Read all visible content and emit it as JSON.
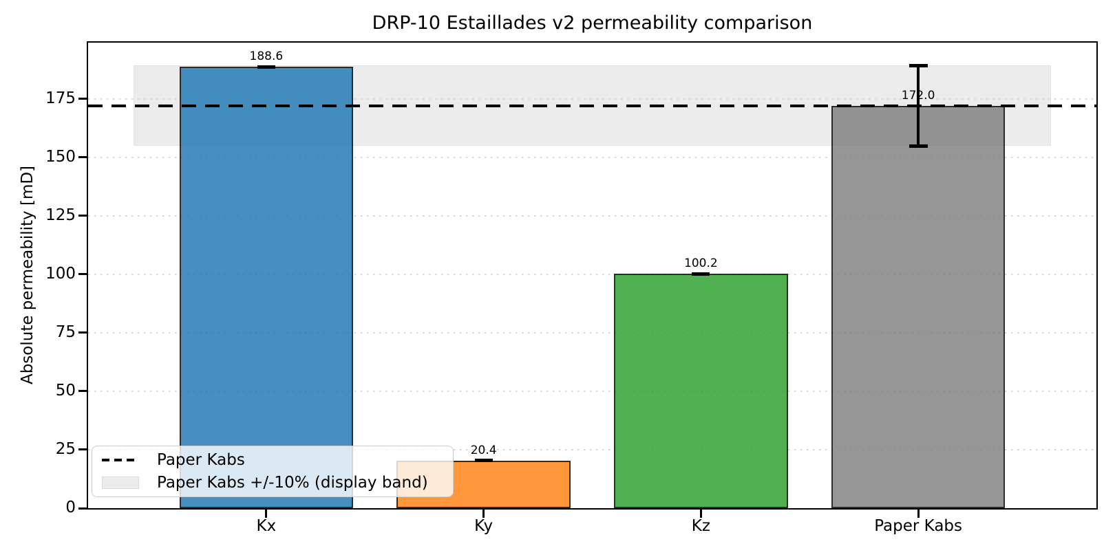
{
  "chart_data": {
    "type": "bar",
    "title": "DRP-10 Estaillades v2 permeability comparison",
    "xlabel": "",
    "ylabel": "Absolute permeability [mD]",
    "categories": [
      "Kx",
      "Ky",
      "Kz",
      "Paper Kabs"
    ],
    "values": [
      188.6,
      20.4,
      100.2,
      172.0
    ],
    "value_labels": [
      "188.6",
      "20.4",
      "100.2",
      "172.0"
    ],
    "bar_colors": [
      "#1f77b4",
      "#ff7f0e",
      "#2ca02c",
      "#7f7f7f"
    ],
    "bar_edge_color": "#000000",
    "yticks": [
      0,
      25,
      50,
      75,
      100,
      125,
      150,
      175
    ],
    "ylim": [
      0,
      199
    ],
    "grid": "horizontal-dotted",
    "reference_line": {
      "value": 172.0,
      "style": "dashed",
      "color": "#000000",
      "label": "Paper Kabs"
    },
    "band": {
      "y_low": 154.8,
      "y_high": 189.2,
      "x_start": -0.61,
      "x_end": 3.61,
      "color": "#ececec",
      "label": "Paper Kabs +/-10% (display band)"
    },
    "error_bar": {
      "category": "Paper Kabs",
      "index": 3,
      "center": 172.0,
      "plus_minus": 17.2
    },
    "legend": {
      "position": "lower left",
      "items": [
        {
          "marker": "dashed-line",
          "label": "Paper Kabs"
        },
        {
          "marker": "gray-patch",
          "label": "Paper Kabs +/-10% (display band)"
        }
      ]
    }
  }
}
